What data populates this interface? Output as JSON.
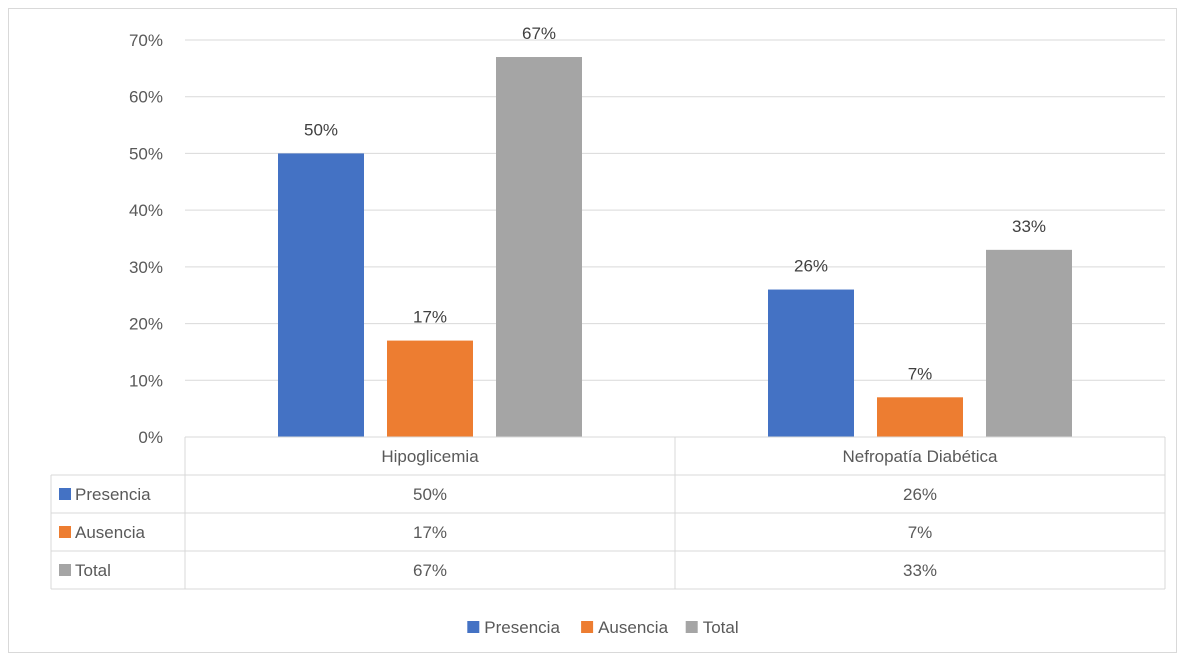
{
  "chart_data": {
    "type": "bar",
    "title": "",
    "xlabel": "",
    "ylabel": "",
    "categories": [
      "Hipoglicemia",
      "Nefropatía Diabética"
    ],
    "series": [
      {
        "name": "Presencia",
        "values": [
          50,
          26
        ],
        "labels": [
          "50%",
          "26%"
        ],
        "color": "#4472c4"
      },
      {
        "name": "Ausencia",
        "values": [
          17,
          7
        ],
        "labels": [
          "17%",
          "7%"
        ],
        "color": "#ed7d31"
      },
      {
        "name": "Total",
        "values": [
          67,
          33
        ],
        "labels": [
          "67%",
          "33%"
        ],
        "color": "#a5a5a5"
      }
    ],
    "ylim": [
      0,
      70
    ],
    "yticks": [
      "0%",
      "10%",
      "20%",
      "30%",
      "40%",
      "50%",
      "60%",
      "70%"
    ],
    "grid": true,
    "data_table": true,
    "legend_position": "bottom"
  }
}
